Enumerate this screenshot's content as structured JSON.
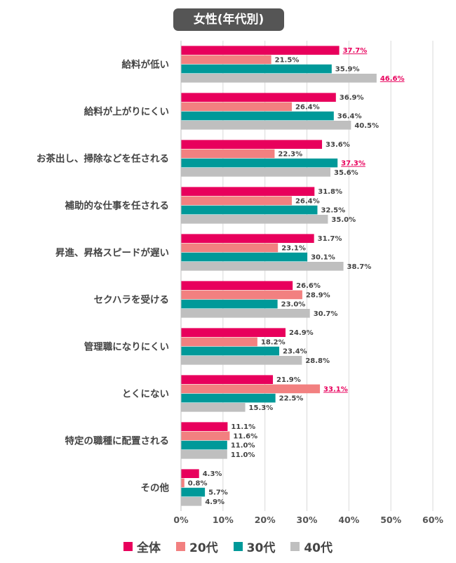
{
  "chart_data": {
    "type": "bar",
    "orientation": "horizontal",
    "title": "女性(年代別)",
    "categories": [
      "給料が低い",
      "給料が上がりにくい",
      "お茶出し、掃除などを任される",
      "補助的な仕事を任される",
      "昇進、昇格スピードが遅い",
      "セクハラを受ける",
      "管理職になりにくい",
      "とくにない",
      "特定の職種に配置される",
      "その他"
    ],
    "series": [
      {
        "name": "全体",
        "color": "#e8005c",
        "values": [
          37.7,
          36.9,
          33.6,
          31.8,
          31.7,
          26.6,
          24.9,
          21.9,
          11.1,
          4.3
        ]
      },
      {
        "name": "20代",
        "color": "#f28080",
        "values": [
          21.5,
          26.4,
          22.3,
          26.4,
          23.1,
          28.9,
          18.2,
          33.1,
          11.6,
          0.8
        ]
      },
      {
        "name": "30代",
        "color": "#009999",
        "values": [
          35.9,
          36.4,
          37.3,
          32.5,
          30.1,
          23.0,
          23.4,
          22.5,
          11.0,
          5.7
        ]
      },
      {
        "name": "40代",
        "color": "#bfbfbf",
        "values": [
          46.6,
          40.5,
          35.6,
          35.0,
          38.7,
          30.7,
          28.8,
          15.3,
          11.0,
          4.9
        ]
      }
    ],
    "highlighted": [
      {
        "category": 0,
        "series": 0
      },
      {
        "category": 0,
        "series": 3
      },
      {
        "category": 2,
        "series": 2
      },
      {
        "category": 7,
        "series": 1
      }
    ],
    "xlim": [
      0,
      60
    ],
    "xticks": [
      "0%",
      "10%",
      "20%",
      "30%",
      "40%",
      "50%",
      "60%"
    ],
    "grid": true,
    "legend_position": "bottom-center",
    "value_suffix": "%"
  }
}
